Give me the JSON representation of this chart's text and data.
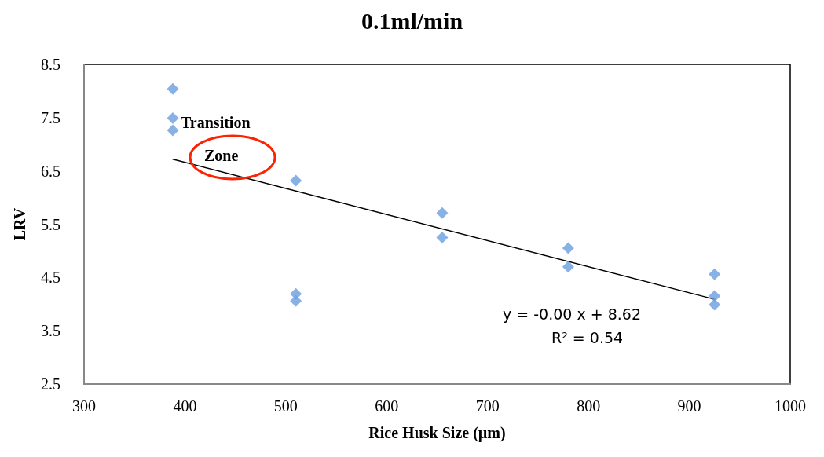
{
  "chart_data": {
    "type": "scatter",
    "title": "0.1ml/min",
    "xlabel": "Rice Husk Size (µm)",
    "ylabel": "LRV",
    "x": [
      388,
      388,
      388,
      510,
      510,
      510,
      655,
      655,
      780,
      780,
      925,
      925,
      925
    ],
    "series": [
      {
        "color": "#6a9fdf",
        "marker": "diamond",
        "values": [
          8.04,
          7.49,
          7.26,
          6.32,
          4.19,
          4.06,
          5.71,
          5.25,
          5.05,
          4.7,
          4.56,
          4.15,
          3.99
        ]
      },
      {
        "type": "line",
        "color": "#000000",
        "marker": "none",
        "line_style": "solid",
        "x": [
          388,
          925
        ],
        "values": [
          6.72,
          4.09
        ]
      }
    ],
    "xlim": [
      300,
      1000
    ],
    "xticks": [
      300,
      400,
      500,
      600,
      700,
      800,
      900,
      1000
    ],
    "ylim": [
      2.5,
      8.5
    ],
    "yticks": [
      2.5,
      3.5,
      4.5,
      5.5,
      6.5,
      7.5,
      8.5
    ],
    "grid": false,
    "annotations": [
      "Transition",
      "Zone",
      "y = -0.00 x + 8.62",
      "R² = 0.54"
    ]
  }
}
